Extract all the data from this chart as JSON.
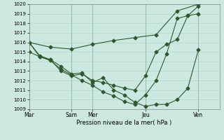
{
  "xlabel": "Pression niveau de la mer( hPa )",
  "ylim": [
    1009,
    1020
  ],
  "yticks": [
    1009,
    1010,
    1011,
    1012,
    1013,
    1014,
    1015,
    1016,
    1017,
    1018,
    1019,
    1020
  ],
  "xtick_labels": [
    "Mar",
    "Sam",
    "Mer",
    "Jeu",
    "Ven"
  ],
  "xtick_pos": [
    0,
    56,
    84,
    154,
    224
  ],
  "xlim": [
    0,
    252
  ],
  "background_color": "#cce8e0",
  "line_color": "#2d5a2d",
  "grid_color": "#b0d8cc",
  "line1_x": [
    0,
    28,
    56,
    84,
    112,
    140,
    168,
    196,
    224
  ],
  "line1_y": [
    1016.0,
    1015.5,
    1015.3,
    1015.8,
    1016.2,
    1016.5,
    1016.8,
    1019.3,
    1020.0
  ],
  "line2_x": [
    0,
    14,
    28,
    42,
    56,
    70,
    84,
    98,
    112,
    126,
    140,
    154,
    168,
    182,
    196,
    210,
    224
  ],
  "line2_y": [
    1015.0,
    1014.5,
    1014.2,
    1013.5,
    1012.7,
    1012.8,
    1011.8,
    1012.3,
    1011.0,
    1010.5,
    1009.7,
    1009.3,
    1009.5,
    1009.5,
    1010.0,
    1011.2,
    1015.2
  ],
  "line3_x": [
    0,
    14,
    28,
    42,
    56,
    70,
    84,
    98,
    112,
    126,
    140,
    154,
    168,
    182,
    196,
    210,
    224
  ],
  "line3_y": [
    1016.0,
    1014.6,
    1014.2,
    1013.0,
    1012.5,
    1012.7,
    1012.0,
    1011.8,
    1011.5,
    1011.2,
    1011.0,
    1012.5,
    1015.0,
    1015.8,
    1016.3,
    1018.8,
    1019.0
  ],
  "line4_x": [
    0,
    14,
    28,
    42,
    56,
    70,
    84,
    98,
    112,
    126,
    140,
    154,
    168,
    182,
    196,
    210,
    224
  ],
  "line4_y": [
    1016.0,
    1014.5,
    1014.1,
    1013.2,
    1012.6,
    1012.0,
    1011.5,
    1010.8,
    1010.4,
    1009.8,
    1009.5,
    1010.5,
    1012.0,
    1014.8,
    1018.5,
    1018.8,
    1019.8
  ]
}
